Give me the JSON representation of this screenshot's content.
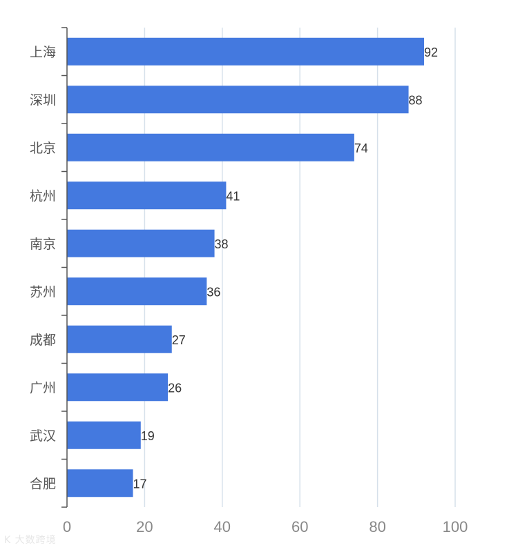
{
  "chart_data": {
    "type": "bar",
    "orientation": "horizontal",
    "categories": [
      "上海",
      "深圳",
      "北京",
      "杭州",
      "南京",
      "苏州",
      "成都",
      "广州",
      "武汉",
      "合肥"
    ],
    "values": [
      92,
      88,
      74,
      41,
      38,
      36,
      27,
      26,
      19,
      17
    ],
    "title": "",
    "xlabel": "",
    "ylabel": "",
    "xlim": [
      0,
      100
    ],
    "xticks": [
      0,
      20,
      40,
      60,
      80,
      100
    ],
    "grid": true,
    "bar_color": "#4479df",
    "grid_color": "#d6e0ea",
    "axis_color": "#555555"
  },
  "watermark": {
    "text": "大数跨境",
    "logo_text": "K"
  }
}
